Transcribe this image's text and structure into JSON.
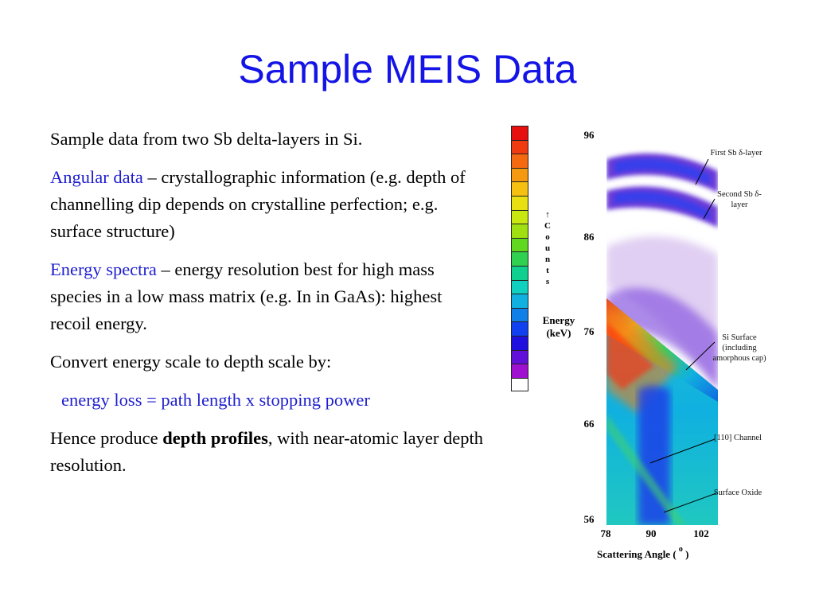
{
  "slide": {
    "title": "Sample MEIS Data"
  },
  "body": {
    "p1": "Sample data from two Sb delta-layers in Si.",
    "p2_term": "Angular data",
    "p2_rest": " – crystallographic information (e.g. depth of channelling dip depends on crystalline perfection; e.g. surface structure)",
    "p3_term": "Energy spectra",
    "p3_rest": " – energy resolution best for high mass species in a low mass matrix (e.g. In in GaAs): highest recoil energy.",
    "p4": "Convert energy scale to depth scale by:",
    "p5": "energy loss = path length x stopping power",
    "p6_start": "Hence produce ",
    "p6_bold": "depth profiles",
    "p6_end": ", with near-atomic layer depth resolution."
  },
  "figure": {
    "colorbar_colors": [
      "#e61010",
      "#f03a10",
      "#f56a10",
      "#f59a10",
      "#f5c010",
      "#e8e010",
      "#c8e810",
      "#a0e010",
      "#60d820",
      "#30d050",
      "#10d090",
      "#10d0c0",
      "#10b0e0",
      "#1080e8",
      "#1040f0",
      "#2010e0",
      "#6010d8",
      "#a010d0",
      "#ffffff"
    ],
    "counts_letters": [
      "↑",
      "C",
      "o",
      "u",
      "n",
      "t",
      "s"
    ],
    "energy_label_line1": "Energy",
    "energy_label_line2": "(keV)",
    "y_ticks": [
      "96",
      "86",
      "76",
      "66",
      "56"
    ],
    "x_ticks": [
      "78",
      "90",
      "102"
    ],
    "x_axis_label": "Scattering Angle (",
    "x_axis_unit": "o",
    "x_axis_close": ")",
    "annotations": {
      "first_sb": "First Sb δ-layer",
      "second_sb": "Second Sb δ-layer",
      "si_surface": "Si Surface (including amorphous cap)",
      "channel": "[110] Channel",
      "surface_oxide": "Surface Oxide"
    }
  }
}
